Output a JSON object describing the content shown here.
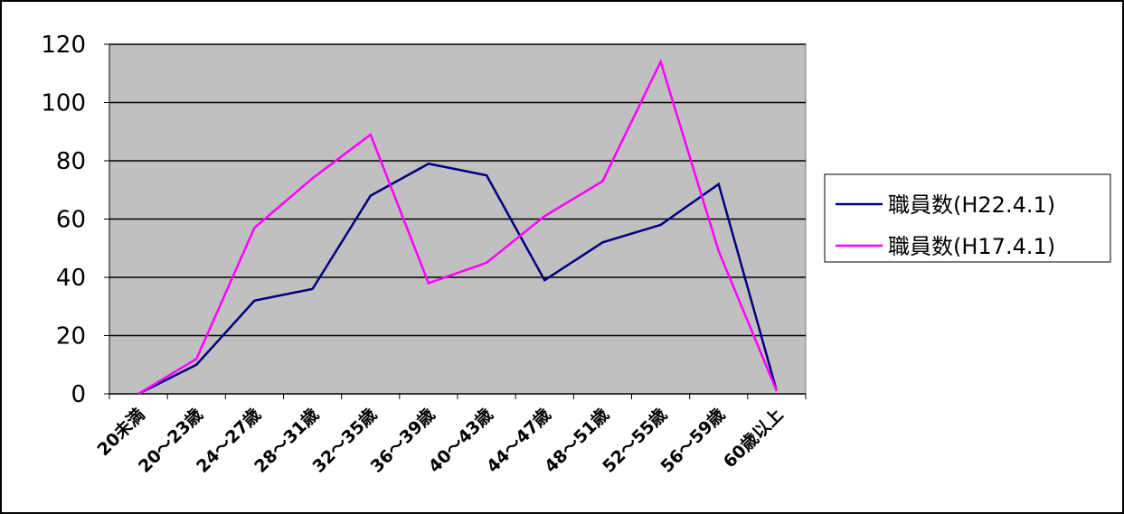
{
  "chart_data": {
    "type": "line",
    "categories": [
      "20未満",
      "20～23歳",
      "24～27歳",
      "28～31歳",
      "32～35歳",
      "36～39歳",
      "40～43歳",
      "44～47歳",
      "48～51歳",
      "52～55歳",
      "56～59歳",
      "60歳以上"
    ],
    "series": [
      {
        "name": "職員数(H22.4.1)",
        "color": "#000080",
        "values": [
          0,
          10,
          32,
          36,
          68,
          79,
          75,
          39,
          52,
          58,
          72,
          1
        ]
      },
      {
        "name": "職員数(H17.4.1)",
        "color": "#ff00ff",
        "values": [
          0,
          12,
          57,
          74,
          89,
          38,
          45,
          61,
          73,
          114,
          49,
          1
        ]
      }
    ],
    "ylim": [
      0,
      120
    ],
    "yticks": [
      0,
      20,
      40,
      60,
      80,
      100,
      120
    ],
    "grid": true,
    "legend": "right"
  }
}
